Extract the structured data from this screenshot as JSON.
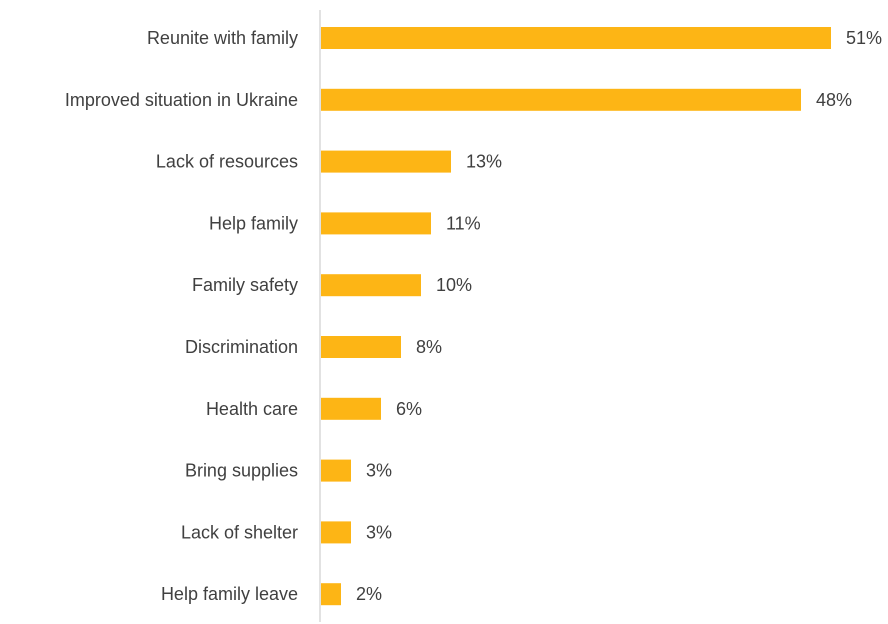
{
  "chart_data": {
    "type": "bar",
    "orientation": "horizontal",
    "categories": [
      "Reunite with family",
      "Improved situation in Ukraine",
      "Lack of resources",
      "Help family",
      "Family safety",
      "Discrimination",
      "Health care",
      "Bring supplies",
      "Lack of shelter",
      "Help family leave"
    ],
    "values": [
      51,
      48,
      13,
      11,
      10,
      8,
      6,
      3,
      3,
      2
    ],
    "value_labels": [
      "51%",
      "48%",
      "13%",
      "11%",
      "10%",
      "8%",
      "6%",
      "3%",
      "3%",
      "2%"
    ],
    "unit": "%",
    "xlim": [
      0,
      51
    ],
    "grid": false,
    "legend": "none",
    "bar_color": "#FDB515",
    "axis_color": "#D9D9D9",
    "text_color": "#404040"
  }
}
